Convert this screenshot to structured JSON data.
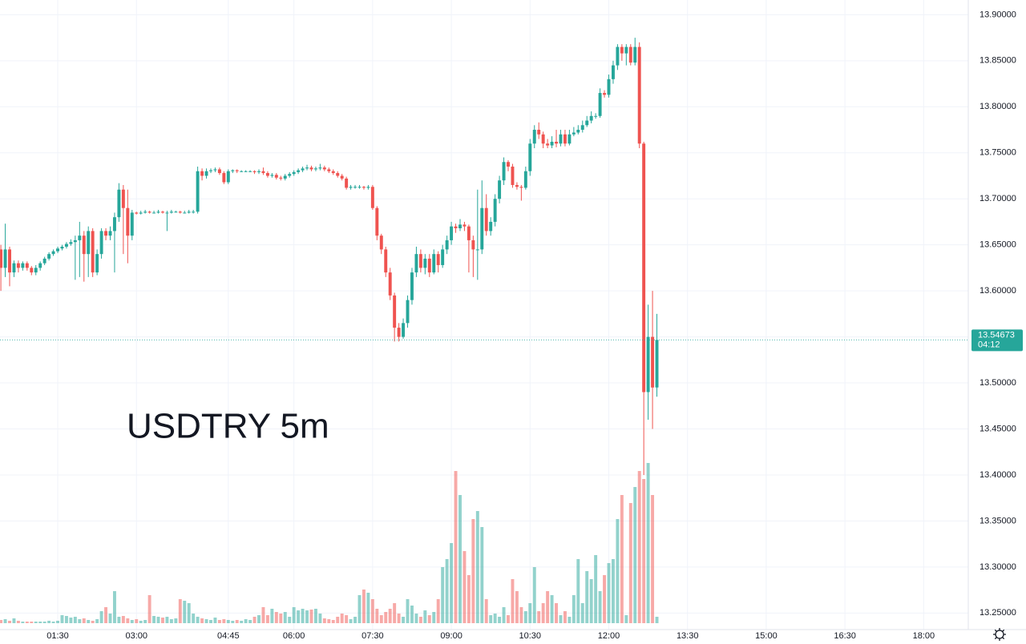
{
  "chart_data": {
    "type": "candlestick",
    "annotation": "USDTRY 5m",
    "x": [
      25,
      30,
      35,
      40,
      45,
      50,
      55,
      60,
      65,
      70,
      75,
      80,
      85,
      90,
      95,
      100,
      105,
      110,
      115,
      120,
      125,
      130,
      135,
      140,
      145,
      150,
      155,
      160,
      165,
      170,
      175,
      180,
      185,
      190,
      195,
      200,
      205,
      210,
      215,
      220,
      225,
      230,
      235,
      240,
      245,
      250,
      255,
      260,
      265,
      270,
      275,
      280,
      285,
      290,
      295,
      300,
      305,
      310,
      315,
      320,
      325,
      330,
      335,
      340,
      345,
      350,
      355,
      360,
      365,
      370,
      375,
      380,
      385,
      390,
      395,
      400,
      405,
      410,
      415,
      420,
      425,
      430,
      435,
      440,
      445,
      450,
      455,
      460,
      465,
      470,
      475,
      480,
      485,
      490,
      495,
      500,
      505,
      510,
      515,
      520,
      525,
      530,
      535,
      540,
      545,
      550,
      555,
      560,
      565,
      570,
      575,
      580,
      585,
      590,
      595,
      600,
      605,
      610,
      615,
      620,
      625,
      630,
      635,
      640,
      645,
      650,
      655,
      660,
      665,
      670,
      675,
      680,
      685,
      690,
      695,
      700,
      705,
      710,
      715,
      720,
      725,
      730,
      735,
      740,
      745,
      750,
      755,
      760,
      765,
      770,
      775
    ],
    "open": [
      13.645,
      13.625,
      13.645,
      13.62,
      13.63,
      13.625,
      13.63,
      13.625,
      13.62,
      13.625,
      13.63,
      13.635,
      13.64,
      13.643,
      13.646,
      13.648,
      13.651,
      13.653,
      13.655,
      13.66,
      13.64,
      13.665,
      13.62,
      13.64,
      13.665,
      13.66,
      13.665,
      13.68,
      13.71,
      13.69,
      13.66,
      13.685,
      13.684,
      13.685,
      13.686,
      13.685,
      13.685,
      13.686,
      13.685,
      13.685,
      13.686,
      13.686,
      13.685,
      13.685,
      13.686,
      13.686,
      13.73,
      13.725,
      13.73,
      13.731,
      13.732,
      13.728,
      13.718,
      13.73,
      13.731,
      13.73,
      13.73,
      13.73,
      13.73,
      13.729,
      13.73,
      13.728,
      13.725,
      13.726,
      13.723,
      13.722,
      13.725,
      13.727,
      13.729,
      13.731,
      13.733,
      13.734,
      13.732,
      13.733,
      13.734,
      13.732,
      13.73,
      13.728,
      13.725,
      13.722,
      13.712,
      13.713,
      13.713,
      13.713,
      13.712,
      13.713,
      13.69,
      13.66,
      13.645,
      13.62,
      13.595,
      13.56,
      13.55,
      13.565,
      13.59,
      13.62,
      13.64,
      13.625,
      13.635,
      13.62,
      13.64,
      13.628,
      13.645,
      13.655,
      13.67,
      13.668,
      13.672,
      13.67,
      13.655,
      13.645,
      13.645,
      13.69,
      13.665,
      13.675,
      13.7,
      13.72,
      13.74,
      13.735,
      13.715,
      13.713,
      13.712,
      13.73,
      13.76,
      13.775,
      13.77,
      13.76,
      13.758,
      13.762,
      13.76,
      13.77,
      13.76,
      13.77,
      13.772,
      13.775,
      13.78,
      13.785,
      13.79,
      13.79,
      13.815,
      13.813,
      13.83,
      13.845,
      13.865,
      13.858,
      13.865,
      13.848,
      13.865,
      13.76,
      13.49,
      13.55,
      13.495
    ],
    "high": [
      13.65,
      13.673,
      13.648,
      13.633,
      13.633,
      13.632,
      13.632,
      13.627,
      13.628,
      13.632,
      13.637,
      13.642,
      13.645,
      13.648,
      13.65,
      13.653,
      13.656,
      13.66,
      13.675,
      13.665,
      13.67,
      13.668,
      13.645,
      13.668,
      13.668,
      13.67,
      13.685,
      13.717,
      13.715,
      13.71,
      13.688,
      13.686,
      13.687,
      13.688,
      13.687,
      13.687,
      13.688,
      13.687,
      13.687,
      13.688,
      13.687,
      13.687,
      13.687,
      13.688,
      13.688,
      13.735,
      13.733,
      13.733,
      13.733,
      13.734,
      13.734,
      13.73,
      13.732,
      13.732,
      13.732,
      13.731,
      13.731,
      13.731,
      13.731,
      13.732,
      13.734,
      13.73,
      13.728,
      13.728,
      13.725,
      13.727,
      13.729,
      13.731,
      13.733,
      13.735,
      13.737,
      13.736,
      13.735,
      13.738,
      13.736,
      13.734,
      13.732,
      13.73,
      13.727,
      13.724,
      13.715,
      13.715,
      13.715,
      13.714,
      13.715,
      13.715,
      13.692,
      13.662,
      13.648,
      13.625,
      13.598,
      13.565,
      13.57,
      13.595,
      13.625,
      13.648,
      13.645,
      13.64,
      13.64,
      13.645,
      13.643,
      13.65,
      13.66,
      13.675,
      13.673,
      13.678,
      13.675,
      13.672,
      13.66,
      13.71,
      13.72,
      13.705,
      13.68,
      13.705,
      13.725,
      13.745,
      13.742,
      13.738,
      13.718,
      13.715,
      13.735,
      13.765,
      13.78,
      13.783,
      13.773,
      13.765,
      13.768,
      13.775,
      13.775,
      13.775,
      13.775,
      13.778,
      13.78,
      13.785,
      13.79,
      13.795,
      13.793,
      13.82,
      13.818,
      13.835,
      13.85,
      13.868,
      13.868,
      13.868,
      13.868,
      13.875,
      13.87,
      13.762,
      13.585,
      13.6,
      13.575
    ],
    "low": [
      13.6,
      13.615,
      13.605,
      13.615,
      13.62,
      13.622,
      13.622,
      13.617,
      13.617,
      13.622,
      13.628,
      13.633,
      13.638,
      13.641,
      13.644,
      13.646,
      13.649,
      13.612,
      13.615,
      13.61,
      13.615,
      13.615,
      13.617,
      13.635,
      13.655,
      13.655,
      13.62,
      13.675,
      13.64,
      13.63,
      13.655,
      13.683,
      13.683,
      13.684,
      13.684,
      13.684,
      13.684,
      13.684,
      13.665,
      13.684,
      13.685,
      13.684,
      13.684,
      13.684,
      13.684,
      13.684,
      13.72,
      13.722,
      13.728,
      13.729,
      13.726,
      13.716,
      13.716,
      13.728,
      13.728,
      13.729,
      13.729,
      13.729,
      13.727,
      13.727,
      13.726,
      13.723,
      13.723,
      13.721,
      13.72,
      13.72,
      13.723,
      13.725,
      13.727,
      13.729,
      13.731,
      13.73,
      13.73,
      13.731,
      13.73,
      13.728,
      13.726,
      13.723,
      13.72,
      13.71,
      13.71,
      13.711,
      13.711,
      13.71,
      13.71,
      13.688,
      13.655,
      13.64,
      13.615,
      13.59,
      13.545,
      13.545,
      13.548,
      13.56,
      13.585,
      13.615,
      13.62,
      13.618,
      13.615,
      13.618,
      13.62,
      13.625,
      13.64,
      13.65,
      13.663,
      13.665,
      13.665,
      13.62,
      13.615,
      13.612,
      13.64,
      13.66,
      13.66,
      13.67,
      13.695,
      13.715,
      13.73,
      13.712,
      13.71,
      13.698,
      13.71,
      13.725,
      13.755,
      13.765,
      13.755,
      13.755,
      13.755,
      13.756,
      13.757,
      13.757,
      13.758,
      13.768,
      13.77,
      13.772,
      13.778,
      13.782,
      13.787,
      13.788,
      13.81,
      13.81,
      13.825,
      13.84,
      13.85,
      13.845,
      13.845,
      13.845,
      13.755,
      13.4,
      13.46,
      13.45,
      13.485
    ],
    "close": [
      13.625,
      13.645,
      13.62,
      13.63,
      13.625,
      13.63,
      13.625,
      13.62,
      13.625,
      13.63,
      13.635,
      13.64,
      13.643,
      13.646,
      13.648,
      13.651,
      13.653,
      13.655,
      13.66,
      13.64,
      13.665,
      13.62,
      13.64,
      13.665,
      13.66,
      13.665,
      13.68,
      13.71,
      13.69,
      13.66,
      13.685,
      13.684,
      13.685,
      13.686,
      13.685,
      13.685,
      13.686,
      13.685,
      13.685,
      13.686,
      13.686,
      13.685,
      13.685,
      13.686,
      13.686,
      13.73,
      13.725,
      13.73,
      13.731,
      13.732,
      13.728,
      13.718,
      13.73,
      13.731,
      13.73,
      13.73,
      13.73,
      13.73,
      13.729,
      13.73,
      13.728,
      13.725,
      13.726,
      13.723,
      13.722,
      13.725,
      13.727,
      13.729,
      13.731,
      13.733,
      13.734,
      13.732,
      13.733,
      13.734,
      13.732,
      13.73,
      13.728,
      13.725,
      13.722,
      13.712,
      13.713,
      13.713,
      13.713,
      13.712,
      13.713,
      13.69,
      13.66,
      13.645,
      13.62,
      13.595,
      13.56,
      13.55,
      13.565,
      13.59,
      13.62,
      13.64,
      13.625,
      13.635,
      13.62,
      13.64,
      13.628,
      13.645,
      13.655,
      13.67,
      13.668,
      13.672,
      13.67,
      13.655,
      13.645,
      13.645,
      13.69,
      13.665,
      13.675,
      13.7,
      13.72,
      13.74,
      13.735,
      13.715,
      13.713,
      13.712,
      13.73,
      13.76,
      13.775,
      13.77,
      13.76,
      13.758,
      13.762,
      13.76,
      13.77,
      13.76,
      13.77,
      13.772,
      13.775,
      13.78,
      13.785,
      13.79,
      13.79,
      13.815,
      13.813,
      13.83,
      13.845,
      13.865,
      13.858,
      13.865,
      13.848,
      13.865,
      13.76,
      13.49,
      13.55,
      13.495,
      13.54673
    ],
    "volume": [
      4,
      5,
      3,
      6,
      3,
      2,
      2,
      2,
      2,
      2,
      2,
      3,
      2,
      3,
      10,
      9,
      7,
      8,
      5,
      6,
      4,
      3,
      5,
      15,
      20,
      12,
      40,
      8,
      9,
      6,
      4,
      5,
      3,
      4,
      35,
      9,
      8,
      7,
      8,
      5,
      6,
      30,
      28,
      25,
      12,
      8,
      6,
      5,
      4,
      7,
      4,
      5,
      4,
      3,
      4,
      3,
      5,
      4,
      8,
      10,
      20,
      10,
      18,
      14,
      12,
      14,
      8,
      20,
      16,
      18,
      16,
      17,
      18,
      12,
      6,
      5,
      4,
      8,
      12,
      10,
      5,
      8,
      35,
      42,
      38,
      30,
      18,
      10,
      14,
      18,
      25,
      12,
      8,
      30,
      22,
      12,
      8,
      16,
      10,
      14,
      30,
      70,
      80,
      100,
      190,
      160,
      90,
      60,
      130,
      140,
      120,
      30,
      10,
      12,
      8,
      20,
      10,
      55,
      40,
      20,
      15,
      25,
      70,
      15,
      25,
      40,
      35,
      25,
      10,
      15,
      8,
      35,
      80,
      25,
      65,
      55,
      85,
      40,
      60,
      75,
      80,
      130,
      160,
      10,
      150,
      170,
      190,
      180,
      200,
      160,
      8
    ],
    "up_color": "#26a69a",
    "down_color": "#ef5350",
    "xlim": [
      24,
      1131
    ],
    "xticks": [
      {
        "value": 90,
        "label": "01:30"
      },
      {
        "value": 180,
        "label": "03:00"
      },
      {
        "value": 285,
        "label": "04:45"
      },
      {
        "value": 360,
        "label": "06:00"
      },
      {
        "value": 450,
        "label": "07:30"
      },
      {
        "value": 540,
        "label": "09:00"
      },
      {
        "value": 630,
        "label": "10:30"
      },
      {
        "value": 720,
        "label": "12:00"
      },
      {
        "value": 810,
        "label": "13:30"
      },
      {
        "value": 900,
        "label": "15:00"
      },
      {
        "value": 990,
        "label": "16:30"
      },
      {
        "value": 1080,
        "label": "18:00"
      }
    ],
    "ylim": [
      13.232,
      13.916
    ],
    "yticks": [
      {
        "value": 13.25,
        "label": "13.25000"
      },
      {
        "value": 13.3,
        "label": "13.30000"
      },
      {
        "value": 13.35,
        "label": "13.35000"
      },
      {
        "value": 13.4,
        "label": "13.40000"
      },
      {
        "value": 13.45,
        "label": "13.45000"
      },
      {
        "value": 13.5,
        "label": "13.50000"
      },
      {
        "value": 13.55,
        "label": "13.55000"
      },
      {
        "value": 13.6,
        "label": "13.60000"
      },
      {
        "value": 13.65,
        "label": "13.65000"
      },
      {
        "value": 13.7,
        "label": "13.70000"
      },
      {
        "value": 13.75,
        "label": "13.75000"
      },
      {
        "value": 13.8,
        "label": "13.80000"
      },
      {
        "value": 13.85,
        "label": "13.85000"
      },
      {
        "value": 13.9,
        "label": "13.90000"
      }
    ],
    "volume_lim": [
      0,
      250
    ],
    "last_price": {
      "value": 13.54673,
      "label": "13.54673"
    },
    "countdown": "04:12",
    "grid": true
  }
}
